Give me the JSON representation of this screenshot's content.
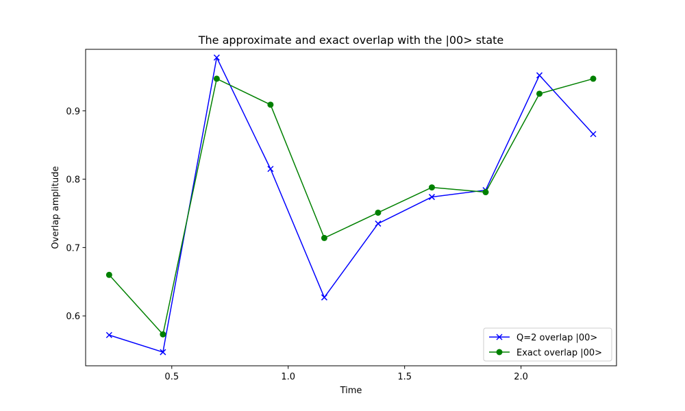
{
  "chart_data": {
    "type": "line",
    "title": "The approximate and exact overlap with the |00> state",
    "xlabel": "Time",
    "ylabel": "Overlap amplitude",
    "xlim": [
      0.13,
      2.41
    ],
    "ylim": [
      0.527,
      0.99
    ],
    "xticks": [
      0.5,
      1.0,
      1.5,
      2.0
    ],
    "xtick_labels": [
      "0.5",
      "1.0",
      "1.5",
      "2.0"
    ],
    "yticks": [
      0.6,
      0.7,
      0.8,
      0.9
    ],
    "ytick_labels": [
      "0.6",
      "0.7",
      "0.8",
      "0.9"
    ],
    "grid": false,
    "legend_position": "lower-right",
    "x": [
      0.231,
      0.462,
      0.693,
      0.924,
      1.155,
      1.386,
      1.617,
      1.848,
      2.079,
      2.31
    ],
    "series": [
      {
        "name": "Q=2 overlap |00>",
        "color": "#0000ff",
        "marker": "x",
        "values": [
          0.572,
          0.547,
          0.978,
          0.815,
          0.627,
          0.735,
          0.774,
          0.784,
          0.952,
          0.866
        ]
      },
      {
        "name": "Exact overlap |00>",
        "color": "#008000",
        "marker": "o",
        "values": [
          0.66,
          0.573,
          0.947,
          0.909,
          0.714,
          0.751,
          0.788,
          0.781,
          0.925,
          0.947
        ]
      }
    ]
  }
}
